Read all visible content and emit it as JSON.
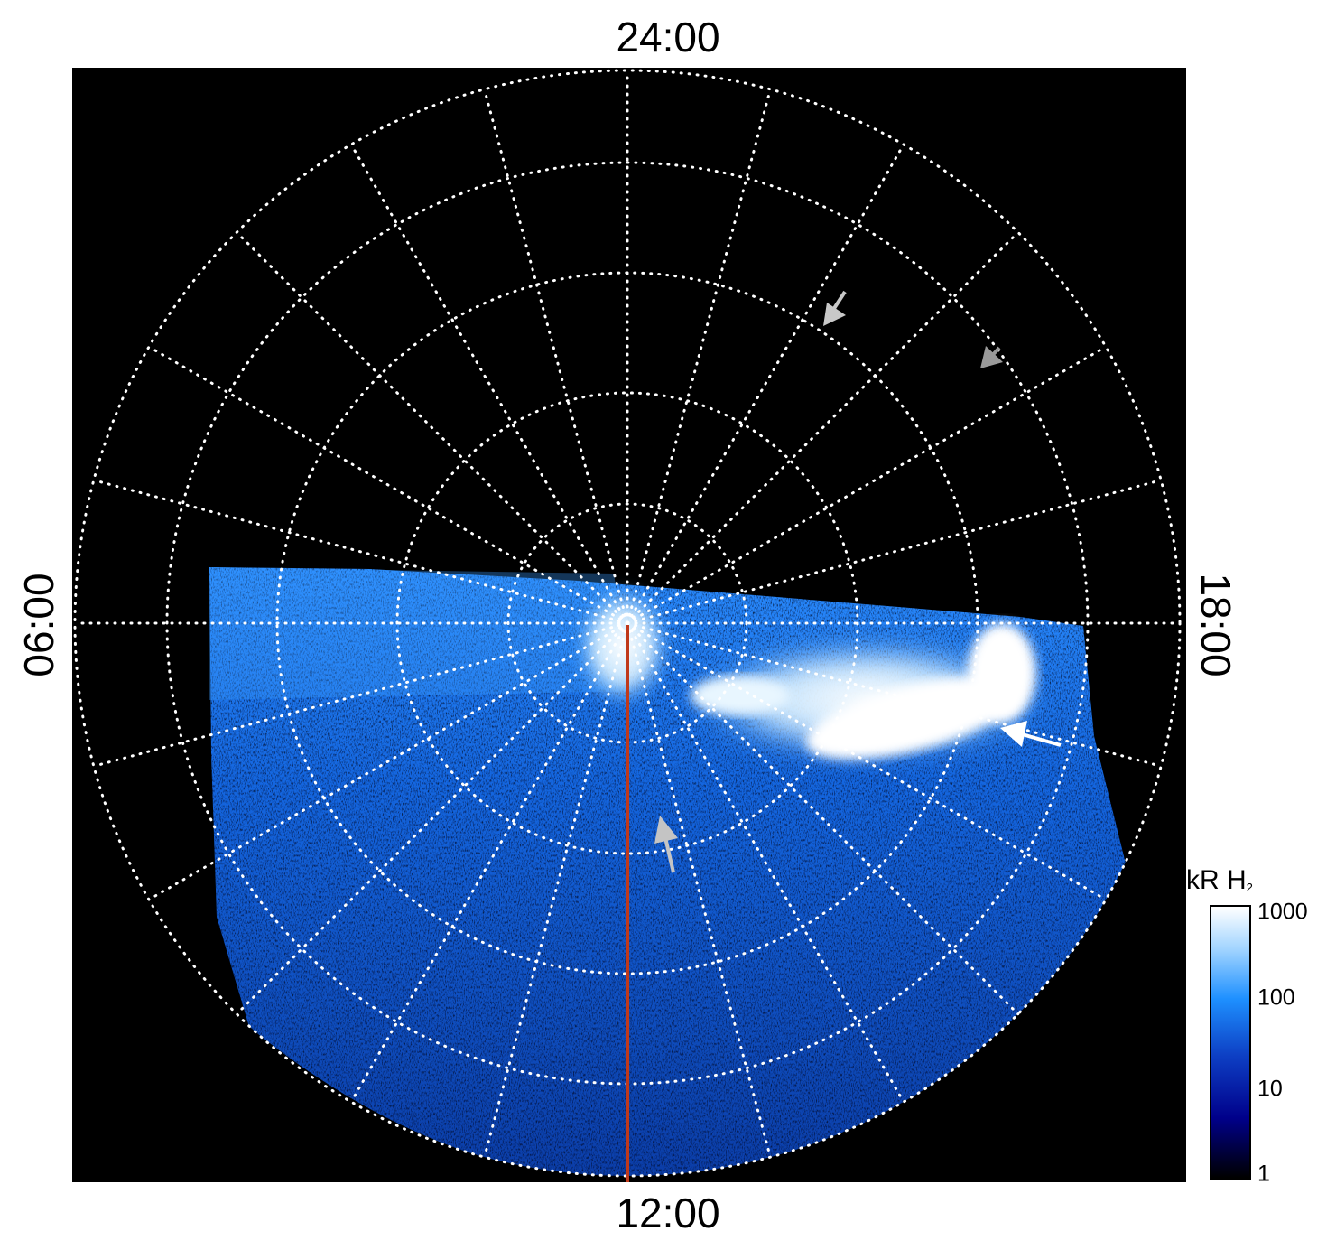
{
  "local_time_labels": {
    "top": "24:00",
    "bottom": "12:00",
    "left": "06:00",
    "right": "18:00"
  },
  "colorbar": {
    "title_main": "kR H",
    "title_sub": "2",
    "ticks": [
      "1000",
      "100",
      "10",
      "1"
    ],
    "scale": "log"
  },
  "colors": {
    "background": "#000000",
    "grid": "#ffffff",
    "meridian_line": "#c0391b",
    "emission_low": "#0a2f8f",
    "emission_mid": "#1e90ff",
    "emission_high": "#ffffff",
    "arrow_white": "#ffffff",
    "arrow_grey": "#b0b0b0"
  }
}
